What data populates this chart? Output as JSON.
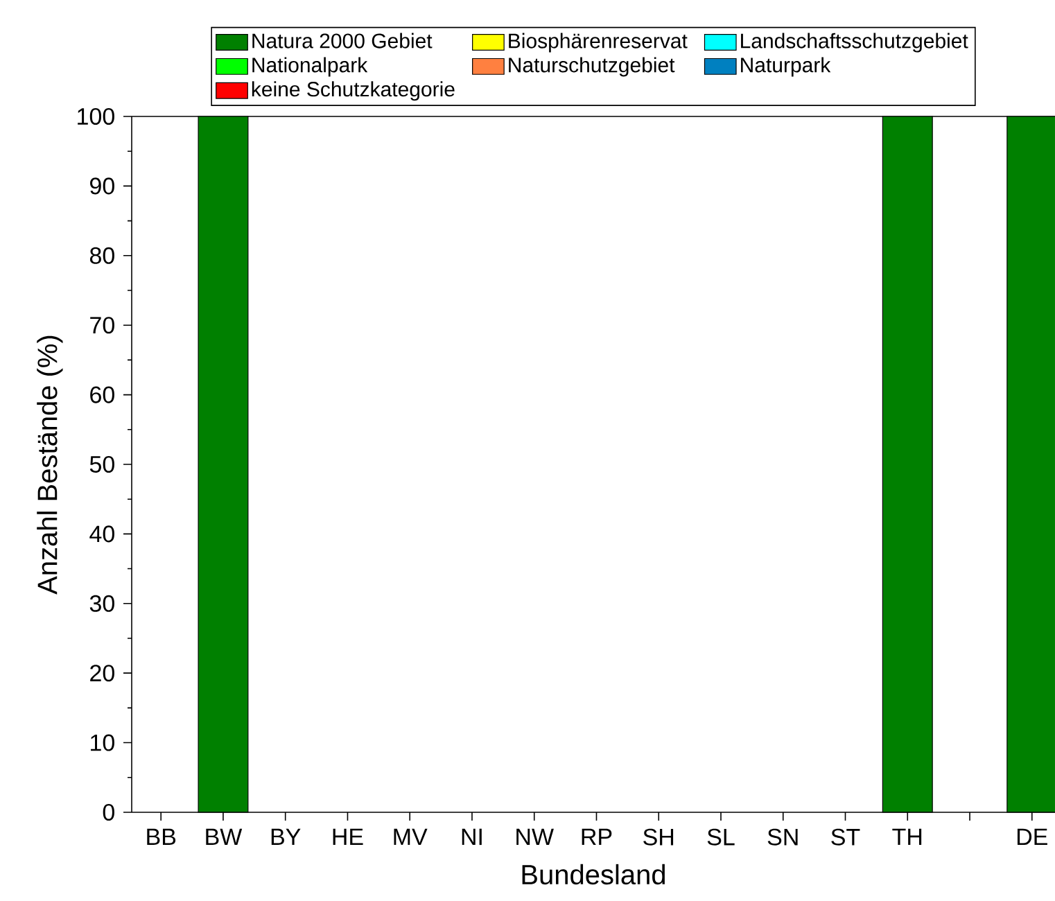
{
  "chart_data": {
    "type": "bar",
    "stacked": true,
    "xlabel": "Bundesland",
    "ylabel": "Anzahl Bestände (%)",
    "categories": [
      "BB",
      "BW",
      "BY",
      "HE",
      "MV",
      "NI",
      "NW",
      "RP",
      "SH",
      "SL",
      "SN",
      "ST",
      "TH",
      null,
      "DE"
    ],
    "series": [
      {
        "name": "Natura 2000 Gebiet",
        "color": "#008000",
        "values": [
          0,
          100,
          0,
          0,
          0,
          0,
          0,
          0,
          0,
          0,
          0,
          0,
          100,
          0,
          100
        ]
      },
      {
        "name": "Biosphärenreservat",
        "color": "#ffff00",
        "values": [
          0,
          0,
          0,
          0,
          0,
          0,
          0,
          0,
          0,
          0,
          0,
          0,
          0,
          0,
          0
        ]
      },
      {
        "name": "Landschaftsschutzgebiet",
        "color": "#00ffff",
        "values": [
          0,
          0,
          0,
          0,
          0,
          0,
          0,
          0,
          0,
          0,
          0,
          0,
          0,
          0,
          0
        ]
      },
      {
        "name": "Nationalpark",
        "color": "#00ff00",
        "values": [
          0,
          0,
          0,
          0,
          0,
          0,
          0,
          0,
          0,
          0,
          0,
          0,
          0,
          0,
          0
        ]
      },
      {
        "name": "Naturschutzgebiet",
        "color": "#ff8040",
        "values": [
          0,
          0,
          0,
          0,
          0,
          0,
          0,
          0,
          0,
          0,
          0,
          0,
          0,
          0,
          0
        ]
      },
      {
        "name": "Naturpark",
        "color": "#0080c0",
        "values": [
          0,
          0,
          0,
          0,
          0,
          0,
          0,
          0,
          0,
          0,
          0,
          0,
          0,
          0,
          0
        ]
      },
      {
        "name": "keine Schutzkategorie",
        "color": "#ff0000",
        "values": [
          0,
          0,
          0,
          0,
          0,
          0,
          0,
          0,
          0,
          0,
          0,
          0,
          0,
          0,
          0
        ]
      }
    ],
    "ylim": [
      0,
      100
    ],
    "yticks": [
      0,
      10,
      20,
      30,
      40,
      50,
      60,
      70,
      80,
      90,
      100
    ],
    "legend": "top",
    "grid": false
  }
}
